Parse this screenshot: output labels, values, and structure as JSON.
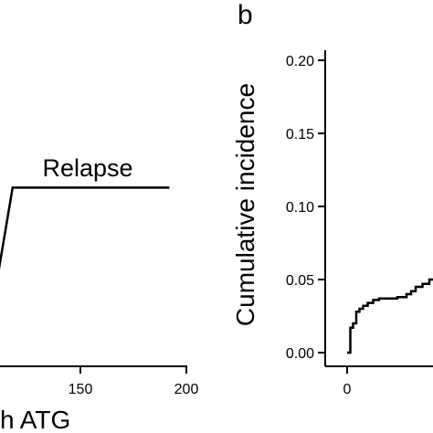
{
  "chart_data": [
    {
      "type": "line",
      "xlabel": "h ATG",
      "x_ticks": [
        "150",
        "200"
      ],
      "annotation": "Relapse",
      "series": [
        {
          "step": true,
          "x": [
            100,
            110,
            110,
            118,
            118,
            192
          ],
          "y": [
            0.026,
            0.026,
            0.026,
            0.06,
            0.06,
            0.06
          ]
        }
      ],
      "xlim": [
        90,
        200
      ],
      "grid": false
    },
    {
      "type": "line",
      "panel_letter": "b",
      "ylabel": "Cumulative incidence",
      "y_ticks": [
        "0.00",
        "0.05",
        "0.10",
        "0.15",
        "0.20"
      ],
      "x_ticks": [
        "0"
      ],
      "ylim": [
        0,
        0.21
      ],
      "series": [
        {
          "step": true,
          "x": [
            0,
            0.7,
            1.3,
            2.0,
            2.7,
            3.5,
            4.5,
            5.7,
            7.0,
            9.0,
            11.0,
            13.0,
            14.0,
            15.0,
            16.5,
            18.0
          ],
          "y": [
            0.0,
            0.017,
            0.02,
            0.028,
            0.03,
            0.032,
            0.034,
            0.036,
            0.037,
            0.037,
            0.038,
            0.04,
            0.042,
            0.045,
            0.047,
            0.05
          ]
        }
      ],
      "grid": false
    }
  ]
}
